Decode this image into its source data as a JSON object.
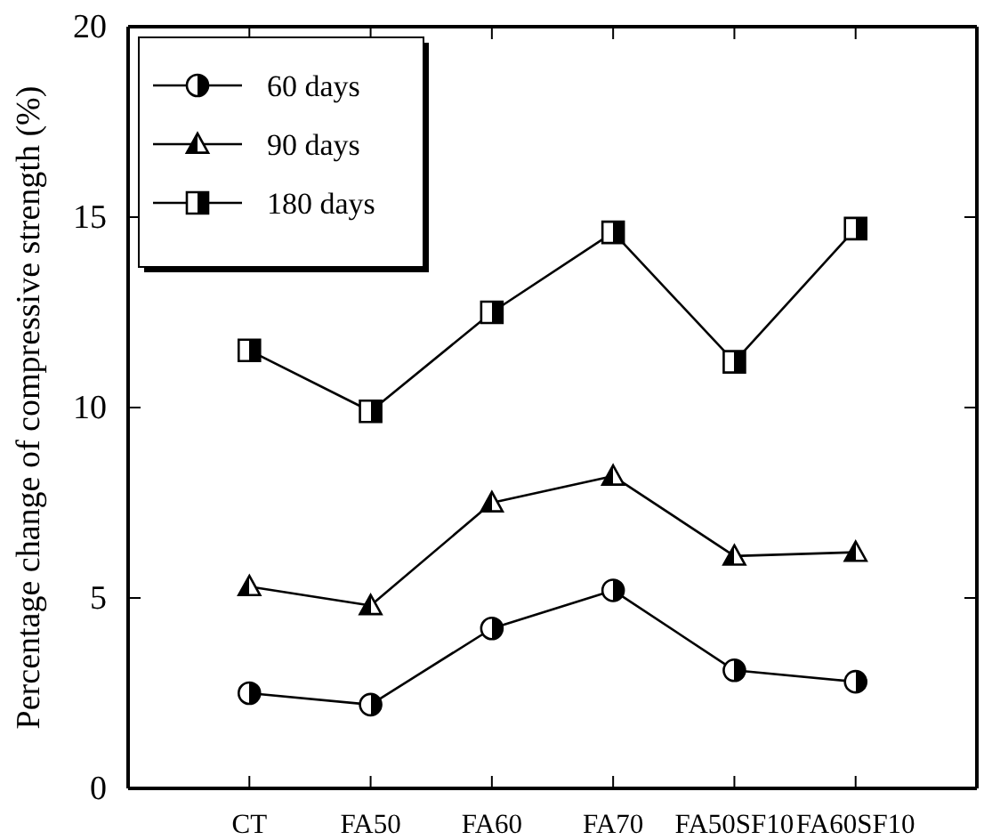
{
  "chart_data": {
    "type": "line",
    "ylabel": "Percentage change of compressive strength (%)",
    "categories": [
      "CT",
      "FA50",
      "FA60",
      "FA70",
      "FA50SF10",
      "FA60SF10"
    ],
    "ylim": [
      0,
      20
    ],
    "yticks": [
      0,
      5,
      10,
      15,
      20
    ],
    "grid": false,
    "legend": "top left",
    "line_style": "solid",
    "series": [
      {
        "name": "60 days",
        "color": "#000000",
        "marker": "circle",
        "values": [
          2.5,
          2.2,
          4.2,
          5.2,
          3.1,
          2.8
        ]
      },
      {
        "name": "90 days",
        "color": "#000000",
        "marker": "triangle",
        "values": [
          5.3,
          4.8,
          7.5,
          8.2,
          6.1,
          6.2
        ]
      },
      {
        "name": "180 days",
        "color": "#000000",
        "marker": "square",
        "values": [
          11.5,
          9.9,
          12.5,
          14.6,
          11.2,
          14.7
        ]
      }
    ]
  }
}
